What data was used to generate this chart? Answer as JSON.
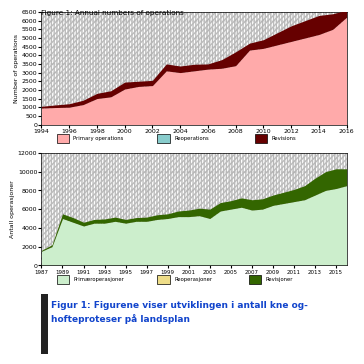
{
  "fig_title": "Figure 1: Annual numbers of operations",
  "chart1": {
    "years": [
      1994,
      1995,
      1996,
      1997,
      1998,
      1999,
      2000,
      2001,
      2002,
      2003,
      2004,
      2005,
      2006,
      2007,
      2008,
      2009,
      2010,
      2011,
      2012,
      2013,
      2014,
      2015,
      2016
    ],
    "primary": [
      950,
      980,
      1000,
      1150,
      1500,
      1600,
      2050,
      2200,
      2250,
      3100,
      3000,
      3100,
      3200,
      3250,
      3400,
      4300,
      4400,
      4600,
      4800,
      5000,
      5200,
      5500,
      6200
    ],
    "revisions": [
      100,
      150,
      200,
      250,
      300,
      350,
      400,
      300,
      300,
      400,
      380,
      380,
      300,
      500,
      800,
      400,
      500,
      700,
      900,
      1000,
      1100,
      900,
      400
    ],
    "ylim": [
      0,
      6500
    ],
    "yticks": [
      0,
      500,
      1000,
      1500,
      2000,
      2500,
      3000,
      3500,
      4000,
      4500,
      5000,
      5500,
      6000,
      6500
    ],
    "ylabel": "Number of operations",
    "primary_color": "#FFAAAA",
    "reop_color": "#88CCCC",
    "revisions_color": "#660000",
    "legend_labels": [
      "Primary operations",
      "Reoperations",
      "Revisions"
    ]
  },
  "chart2": {
    "years": [
      1987,
      1988,
      1989,
      1990,
      1991,
      1992,
      1993,
      1994,
      1995,
      1996,
      1997,
      1998,
      1999,
      2000,
      2001,
      2002,
      2003,
      2004,
      2005,
      2006,
      2007,
      2008,
      2009,
      2010,
      2011,
      2012,
      2013,
      2014,
      2015,
      2016
    ],
    "primary": [
      1500,
      2000,
      5000,
      4600,
      4200,
      4500,
      4500,
      4700,
      4500,
      4700,
      4700,
      4900,
      5000,
      5200,
      5200,
      5300,
      5000,
      5800,
      6000,
      6200,
      5900,
      6000,
      6400,
      6600,
      6800,
      7000,
      7500,
      8000,
      8200,
      8500
    ],
    "revisions": [
      100,
      200,
      500,
      500,
      400,
      400,
      450,
      450,
      400,
      400,
      450,
      500,
      500,
      600,
      700,
      800,
      1000,
      900,
      900,
      1000,
      1100,
      1100,
      1100,
      1200,
      1300,
      1500,
      1800,
      2000,
      2100,
      1800
    ],
    "ylim": [
      0,
      12000
    ],
    "yticks": [
      0,
      2000,
      4000,
      6000,
      8000,
      10000,
      12000
    ],
    "ylabel": "Antall operasjoner",
    "primary_color": "#CCEECC",
    "reop_color": "#EEDD88",
    "revisions_color": "#336600",
    "legend_labels": [
      "Primæroperasjoner",
      "Reoperasjoner",
      "Revisjoner"
    ]
  },
  "caption": "Figur 1: Figurene viser utviklingen i antall kne og-\nhofteproteser på landsplan",
  "caption_color": "#1144CC",
  "bg_color": "#FFFFFF",
  "left_bar_color": "#222222",
  "hatch_color": "#BBBBBB",
  "grid_color": "#999999"
}
